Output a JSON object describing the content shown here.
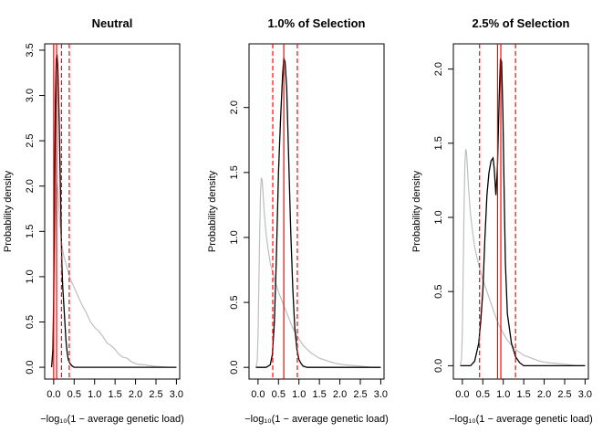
{
  "chart_data": [
    {
      "type": "line",
      "title": "Neutral",
      "xlabel": "−log₁₀(1 − average genetic load)",
      "ylabel": "Probability density",
      "xlim": [
        -0.22,
        3.08
      ],
      "ylim": [
        -0.13,
        3.57
      ],
      "xticks": [
        "0.0",
        "0.5",
        "1.0",
        "1.5",
        "2.0",
        "2.5",
        "3.0"
      ],
      "yticks": [
        "0.0",
        "0.5",
        "1.0",
        "1.5",
        "2.0",
        "2.5",
        "3.0",
        "3.5"
      ],
      "colors": {
        "grey": "#bebebe",
        "black": "#000000",
        "red": "#ff0000"
      },
      "grey_series": {
        "x": [
          -0.06,
          -0.03,
          0.0,
          0.02,
          0.04,
          0.06,
          0.08,
          0.1,
          0.13,
          0.16,
          0.2,
          0.25,
          0.3,
          0.4,
          0.5,
          0.6,
          0.7,
          0.8,
          0.9,
          1.0,
          1.1,
          1.2,
          1.3,
          1.4,
          1.5,
          1.6,
          1.7,
          1.8,
          1.9,
          2.0,
          2.1,
          2.2,
          2.3,
          2.5,
          2.8,
          3.0
        ],
        "y": [
          0.0,
          0.05,
          0.35,
          0.95,
          1.6,
          1.95,
          2.03,
          1.95,
          1.75,
          1.55,
          1.35,
          1.22,
          1.14,
          0.98,
          0.88,
          0.78,
          0.68,
          0.6,
          0.5,
          0.44,
          0.4,
          0.34,
          0.27,
          0.24,
          0.2,
          0.14,
          0.11,
          0.1,
          0.06,
          0.04,
          0.03,
          0.03,
          0.02,
          0.01,
          0.0,
          0.0
        ]
      },
      "black_series": {
        "x": [
          -0.05,
          -0.02,
          0.0,
          0.02,
          0.04,
          0.06,
          0.08,
          0.1,
          0.12,
          0.14,
          0.16,
          0.18,
          0.2,
          0.22,
          0.24,
          0.26,
          0.28,
          0.3,
          0.32,
          0.34,
          0.36,
          0.4,
          0.45,
          0.5,
          0.6,
          0.8,
          1.5,
          3.0
        ],
        "y": [
          0.0,
          0.2,
          0.8,
          1.8,
          2.9,
          3.4,
          3.45,
          3.3,
          3.0,
          2.6,
          2.1,
          1.6,
          1.15,
          0.9,
          0.75,
          0.6,
          0.45,
          0.3,
          0.2,
          0.13,
          0.08,
          0.04,
          0.015,
          0.0,
          0.0,
          0.0,
          0.0,
          0.0
        ]
      },
      "vlines": [
        {
          "x": 0.0,
          "style": "solid"
        },
        {
          "x": 0.07,
          "style": "solid"
        },
        {
          "x": 0.19,
          "style": "dashed"
        },
        {
          "x": 0.38,
          "style": "dashed"
        }
      ]
    },
    {
      "type": "line",
      "title": "1.0% of Selection",
      "xlabel": "−log₁₀(1 − average genetic load)",
      "ylabel": "Probability density",
      "xlim": [
        -0.22,
        3.08
      ],
      "ylim": [
        -0.09,
        2.49
      ],
      "xticks": [
        "0.0",
        "0.5",
        "1.0",
        "1.5",
        "2.0",
        "2.5",
        "3.0"
      ],
      "yticks": [
        "0.0",
        "0.5",
        "1.0",
        "1.5",
        "2.0"
      ],
      "colors": {
        "grey": "#bebebe",
        "black": "#000000",
        "red": "#ff0000"
      },
      "grey_series": {
        "x": [
          -0.05,
          -0.02,
          0.0,
          0.02,
          0.04,
          0.06,
          0.08,
          0.1,
          0.12,
          0.15,
          0.2,
          0.25,
          0.3,
          0.4,
          0.5,
          0.6,
          0.7,
          0.8,
          0.9,
          1.0,
          1.1,
          1.2,
          1.3,
          1.4,
          1.5,
          1.6,
          1.7,
          1.8,
          1.9,
          2.0,
          2.1,
          2.3,
          2.5,
          2.8,
          3.0
        ],
        "y": [
          0.0,
          0.05,
          0.25,
          0.65,
          1.05,
          1.35,
          1.46,
          1.44,
          1.36,
          1.2,
          1.02,
          0.9,
          0.8,
          0.68,
          0.58,
          0.5,
          0.42,
          0.34,
          0.27,
          0.22,
          0.17,
          0.14,
          0.11,
          0.09,
          0.07,
          0.06,
          0.05,
          0.04,
          0.03,
          0.025,
          0.02,
          0.015,
          0.01,
          0.0,
          0.0
        ]
      },
      "black_series": {
        "x": [
          -0.05,
          0.2,
          0.3,
          0.35,
          0.4,
          0.45,
          0.5,
          0.55,
          0.6,
          0.63,
          0.66,
          0.7,
          0.75,
          0.8,
          0.85,
          0.9,
          0.95,
          1.0,
          1.05,
          1.1,
          1.2,
          1.5,
          3.0
        ],
        "y": [
          0.0,
          0.0,
          0.02,
          0.1,
          0.35,
          0.85,
          1.5,
          1.9,
          2.25,
          2.38,
          2.35,
          2.15,
          1.6,
          1.05,
          0.6,
          0.3,
          0.14,
          0.06,
          0.03,
          0.01,
          0.0,
          0.0,
          0.0
        ]
      },
      "vlines": [
        {
          "x": 0.36,
          "style": "dashed"
        },
        {
          "x": 0.63,
          "style": "solid"
        },
        {
          "x": 0.96,
          "style": "dashed"
        }
      ]
    },
    {
      "type": "line",
      "title": "2.5% of Selection",
      "xlabel": "−log₁₀(1 − average genetic load)",
      "ylabel": "Probability density",
      "xlim": [
        -0.22,
        3.08
      ],
      "ylim": [
        -0.09,
        2.17
      ],
      "xticks": [
        "0.0",
        "0.5",
        "1.0",
        "1.5",
        "2.0",
        "2.5",
        "3.0"
      ],
      "yticks": [
        "0.0",
        "0.5",
        "1.0",
        "1.5",
        "2.0"
      ],
      "colors": {
        "grey": "#bebebe",
        "black": "#000000",
        "red": "#ff0000"
      },
      "grey_series": {
        "x": [
          -0.05,
          -0.02,
          0.0,
          0.02,
          0.04,
          0.06,
          0.08,
          0.1,
          0.12,
          0.15,
          0.2,
          0.25,
          0.3,
          0.4,
          0.5,
          0.6,
          0.7,
          0.8,
          0.9,
          1.0,
          1.1,
          1.2,
          1.3,
          1.4,
          1.5,
          1.6,
          1.7,
          1.8,
          1.9,
          2.0,
          2.1,
          2.3,
          2.5,
          2.8,
          3.0
        ],
        "y": [
          0.0,
          0.05,
          0.25,
          0.65,
          1.05,
          1.35,
          1.46,
          1.44,
          1.36,
          1.2,
          1.02,
          0.9,
          0.8,
          0.68,
          0.58,
          0.5,
          0.42,
          0.34,
          0.27,
          0.22,
          0.17,
          0.14,
          0.11,
          0.09,
          0.07,
          0.06,
          0.05,
          0.04,
          0.03,
          0.025,
          0.02,
          0.015,
          0.01,
          0.0,
          0.0
        ]
      },
      "black_series": {
        "x": [
          -0.05,
          0.2,
          0.3,
          0.4,
          0.45,
          0.5,
          0.55,
          0.6,
          0.65,
          0.7,
          0.75,
          0.78,
          0.82,
          0.86,
          0.9,
          0.93,
          0.96,
          0.99,
          1.02,
          1.05,
          1.1,
          1.2,
          1.3,
          1.4,
          1.5,
          1.7,
          3.0
        ],
        "y": [
          0.0,
          0.0,
          0.03,
          0.15,
          0.3,
          0.5,
          0.85,
          1.15,
          1.3,
          1.38,
          1.4,
          1.33,
          1.15,
          1.35,
          1.8,
          2.07,
          2.05,
          1.7,
          1.2,
          0.7,
          0.35,
          0.15,
          0.06,
          0.02,
          0.0,
          0.0,
          0.0
        ]
      },
      "vlines": [
        {
          "x": 0.42,
          "style": "dashed"
        },
        {
          "x": 0.86,
          "style": "solid"
        },
        {
          "x": 0.94,
          "style": "solid"
        },
        {
          "x": 1.3,
          "style": "dashed"
        }
      ]
    }
  ]
}
